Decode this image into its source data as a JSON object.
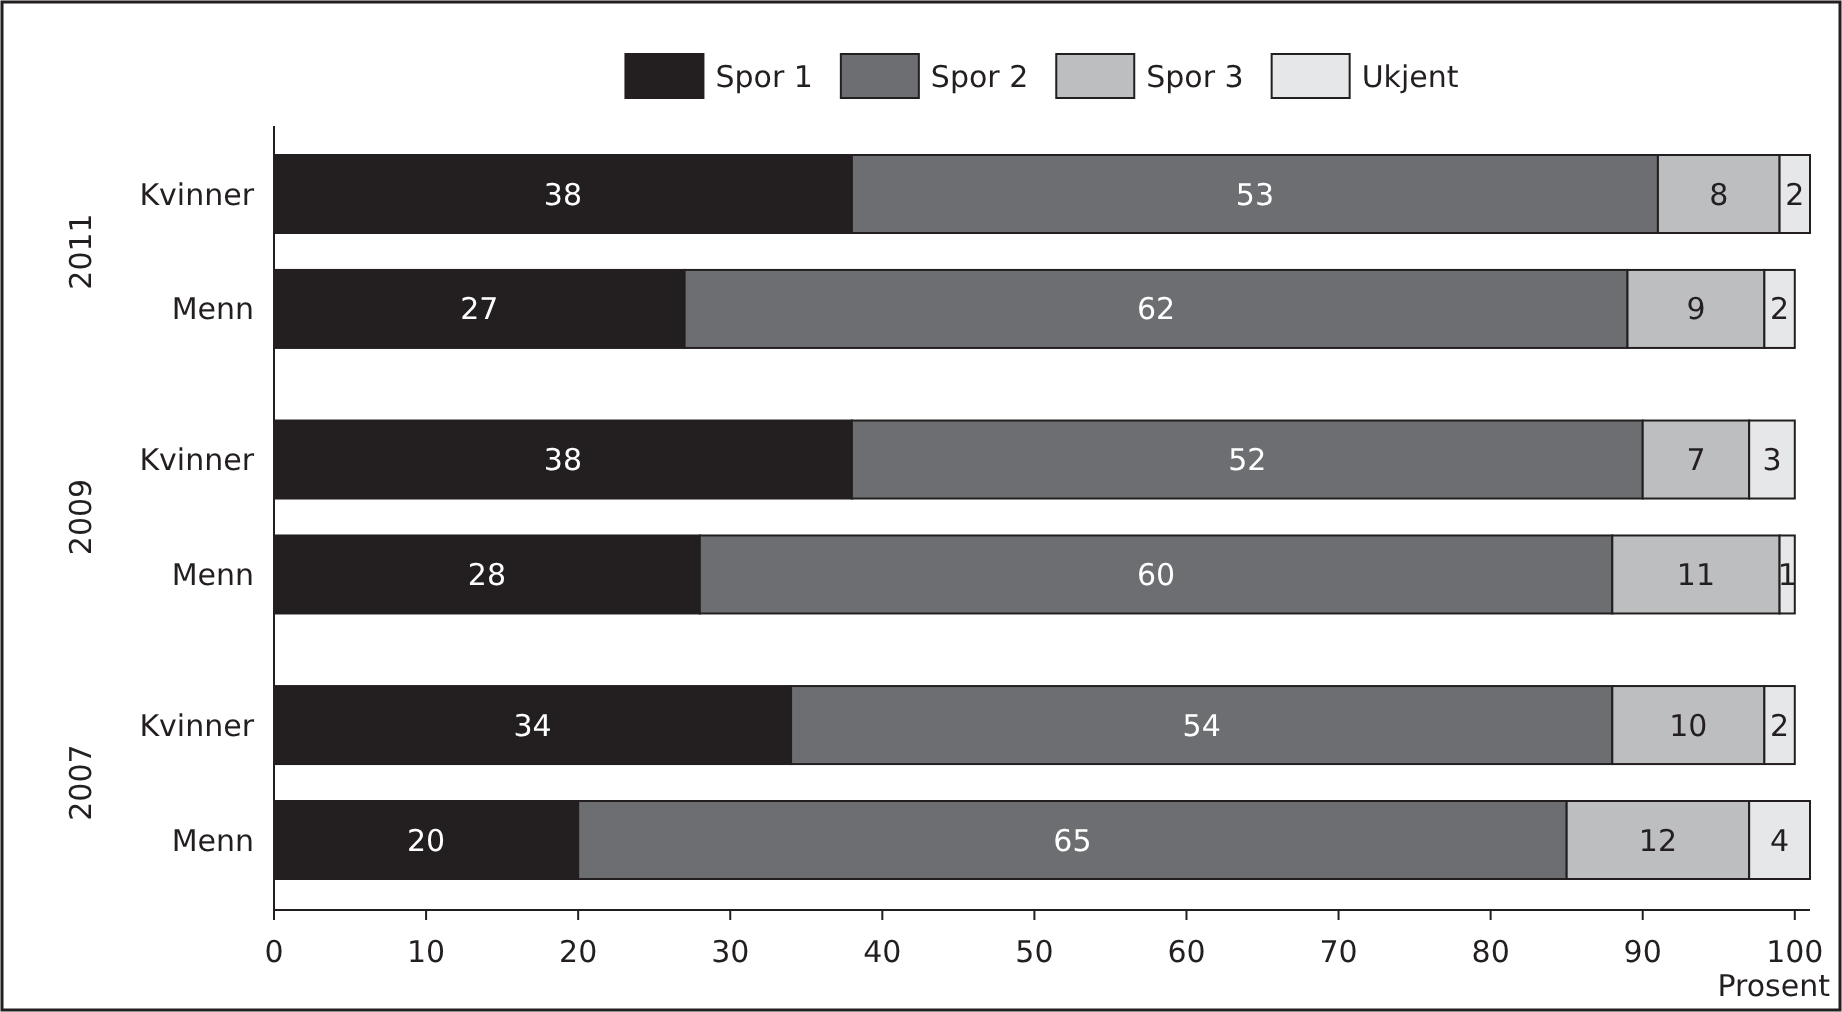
{
  "chart_data": {
    "type": "bar",
    "orientation": "horizontal",
    "stacked": true,
    "data_labels": true,
    "legend": "top",
    "xlabel": "Prosent",
    "categories": [
      "Kvinner",
      "Menn",
      "Kvinner",
      "Menn",
      "Kvinner",
      "Menn"
    ],
    "annotations": [
      "2011",
      "2009",
      "2007"
    ],
    "xlim": [
      0,
      101
    ],
    "xticks": [
      0,
      10,
      20,
      30,
      40,
      50,
      60,
      70,
      80,
      90,
      100
    ],
    "series": [
      {
        "name": "Spor 1",
        "color": "#231f20",
        "values": [
          38,
          27,
          38,
          28,
          34,
          20
        ]
      },
      {
        "name": "Spor 2",
        "color": "#6d6e71",
        "values": [
          53,
          62,
          52,
          60,
          54,
          65
        ]
      },
      {
        "name": "Spor 3",
        "color": "#bcbec0",
        "values": [
          8,
          9,
          7,
          11,
          10,
          12
        ]
      },
      {
        "name": "Ukjent",
        "color": "#e6e7e8",
        "values": [
          2,
          2,
          3,
          1,
          2,
          4
        ]
      }
    ]
  }
}
